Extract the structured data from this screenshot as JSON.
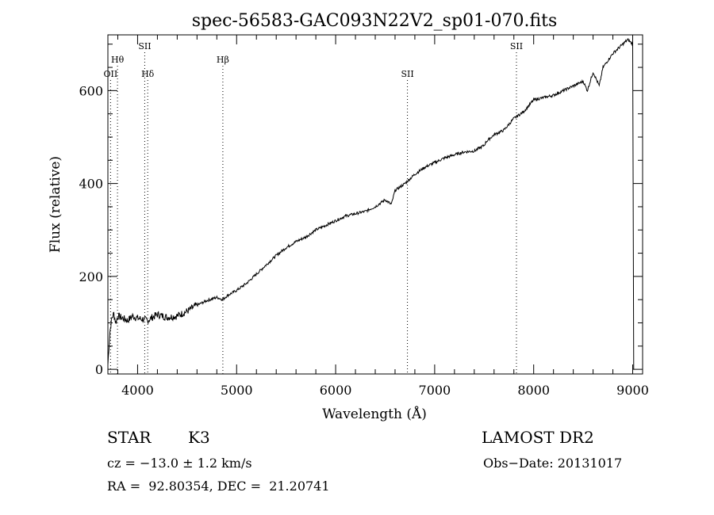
{
  "chart_data": {
    "type": "line",
    "title": "spec-56583-GAC093N22V2_sp01-070.fits",
    "xlabel": "Wavelength (Å)",
    "ylabel": "Flux (relative)",
    "xlim": [
      3700,
      9100
    ],
    "ylim": [
      -10,
      720
    ],
    "x_ticks": [
      4000,
      5000,
      6000,
      7000,
      8000,
      9000
    ],
    "y_ticks": [
      0,
      200,
      400,
      600
    ],
    "grid": false,
    "line_color": "#000000",
    "series": [
      {
        "x": [
          3700,
          3720,
          3740,
          3760,
          3780,
          3800,
          3850,
          3900,
          3950,
          4000,
          4050,
          4100,
          4150,
          4200,
          4300,
          4400,
          4500,
          4600,
          4700,
          4800,
          4861,
          4900,
          5000,
          5100,
          5200,
          5300,
          5400,
          5500,
          5600,
          5700,
          5800,
          5900,
          6000,
          6100,
          6200,
          6300,
          6400,
          6500,
          6563,
          6600,
          6700,
          6800,
          6900,
          7000,
          7100,
          7200,
          7300,
          7400,
          7500,
          7520,
          7600,
          7700,
          7800,
          7900,
          8000,
          8100,
          8200,
          8300,
          8400,
          8500,
          8542,
          8600,
          8662,
          8700,
          8800,
          8900,
          8950,
          9000
        ],
        "y": [
          10,
          80,
          110,
          120,
          100,
          115,
          110,
          105,
          115,
          110,
          108,
          105,
          112,
          118,
          112,
          115,
          125,
          138,
          148,
          155,
          150,
          158,
          170,
          185,
          205,
          225,
          245,
          262,
          275,
          285,
          300,
          310,
          320,
          330,
          335,
          340,
          350,
          365,
          355,
          385,
          400,
          420,
          435,
          445,
          455,
          462,
          468,
          470,
          482,
          490,
          505,
          515,
          540,
          555,
          580,
          585,
          590,
          600,
          610,
          620,
          600,
          640,
          610,
          650,
          680,
          700,
          710,
          700
        ]
      }
    ],
    "annotations": [
      {
        "label": "OII",
        "wavelength": 3727,
        "row": 3
      },
      {
        "label": "Hθ",
        "wavelength": 3797,
        "row": 2
      },
      {
        "label": "SII",
        "wavelength": 4072,
        "row": 1
      },
      {
        "label": "Hδ",
        "wavelength": 4102,
        "row": 3
      },
      {
        "label": "Hβ",
        "wavelength": 4861,
        "row": 2
      },
      {
        "label": "SII",
        "wavelength": 6725,
        "row": 3
      },
      {
        "label": "SII",
        "wavelength": 7826,
        "row": 1
      }
    ]
  },
  "info": {
    "object_class": "STAR",
    "subclass": "K3",
    "survey": "LAMOST DR2",
    "cz": "cz = −13.0 ± 1.2 km/s",
    "obs_date": "Obs−Date: 20131017",
    "coords": "RA =  92.80354, DEC =  21.20741"
  }
}
